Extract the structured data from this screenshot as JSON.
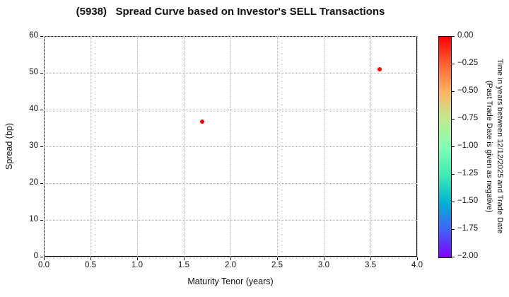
{
  "title": "(5938)   Spread Curve based on Investor's SELL Transactions",
  "chart_data": {
    "type": "scatter",
    "title": "(5938)   Spread Curve based on Investor's SELL Transactions",
    "xlabel": "Maturity Tenor (years)",
    "ylabel": "Spread (bp)",
    "xlim": [
      0.0,
      4.0
    ],
    "ylim": [
      0,
      60
    ],
    "grid": true,
    "grid_style": "dotted",
    "x_ticks": [
      0.0,
      0.5,
      1.0,
      1.5,
      2.0,
      2.5,
      3.0,
      3.5,
      4.0
    ],
    "x_tick_labels": [
      "0.0",
      "0.5",
      "1.0",
      "1.5",
      "2.0",
      "2.5",
      "3.0",
      "3.5",
      "4.0"
    ],
    "y_ticks": [
      0,
      10,
      20,
      30,
      40,
      50,
      60
    ],
    "y_tick_labels": [
      "0",
      "10",
      "20",
      "30",
      "40",
      "50",
      "60"
    ],
    "points": [
      {
        "x": 1.7,
        "y": 36.7,
        "color": "#ff0000"
      },
      {
        "x": 3.6,
        "y": 51.0,
        "color": "#ff0000"
      }
    ],
    "marker_color_hex": "#ff0000",
    "colorbar": {
      "orientation": "vertical",
      "position": "right",
      "vmax": 0.0,
      "vmin": -2.0,
      "tick_labels": [
        "0.00",
        "−0.25",
        "−0.50",
        "−0.75",
        "−1.00",
        "−1.25",
        "−1.50",
        "−1.75",
        "−2.00"
      ],
      "label_line1": "Time in years between 12/12/2025 and Trade Date",
      "label_line2": "(Past Trade Date is given as negative)",
      "colormap": "rainbow",
      "gradient_stops_top_to_bottom": [
        "#ff0000",
        "#ff6232",
        "#ffb462",
        "#bfec8e",
        "#80ffb4",
        "#40ecb4",
        "#00b4d4",
        "#4062fa",
        "#8000ff"
      ]
    }
  }
}
